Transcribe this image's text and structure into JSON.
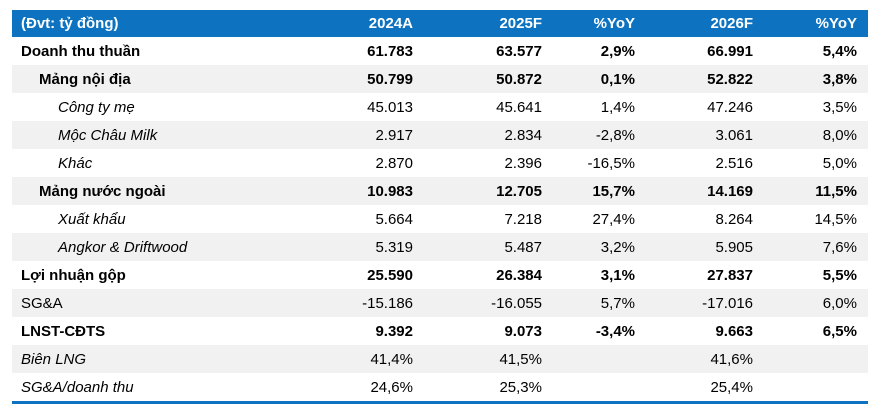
{
  "table": {
    "unit_label": "(Đvt: tỷ đồng)",
    "columns": [
      "2024A",
      "2025F",
      "%YoY",
      "2026F",
      "%YoY"
    ],
    "rows": [
      {
        "label": "Doanh thu thuần",
        "values": [
          "61.783",
          "63.577",
          "2,9%",
          "66.991",
          "5,4%"
        ]
      },
      {
        "label": "Mảng nội địa",
        "values": [
          "50.799",
          "50.872",
          "0,1%",
          "52.822",
          "3,8%"
        ]
      },
      {
        "label": "Công ty mẹ",
        "values": [
          "45.013",
          "45.641",
          "1,4%",
          "47.246",
          "3,5%"
        ]
      },
      {
        "label": "Mộc Châu Milk",
        "values": [
          "2.917",
          "2.834",
          "-2,8%",
          "3.061",
          "8,0%"
        ]
      },
      {
        "label": "Khác",
        "values": [
          "2.870",
          "2.396",
          "-16,5%",
          "2.516",
          "5,0%"
        ]
      },
      {
        "label": "Mảng nước ngoài",
        "values": [
          "10.983",
          "12.705",
          "15,7%",
          "14.169",
          "11,5%"
        ]
      },
      {
        "label": "Xuất khẩu",
        "values": [
          "5.664",
          "7.218",
          "27,4%",
          "8.264",
          "14,5%"
        ]
      },
      {
        "label": "Angkor & Driftwood",
        "values": [
          "5.319",
          "5.487",
          "3,2%",
          "5.905",
          "7,6%"
        ]
      },
      {
        "label": "Lợi nhuận gộp",
        "values": [
          "25.590",
          "26.384",
          "3,1%",
          "27.837",
          "5,5%"
        ]
      },
      {
        "label": "SG&A",
        "values": [
          "-15.186",
          "-16.055",
          "5,7%",
          "-17.016",
          "6,0%"
        ]
      },
      {
        "label": "LNST-CĐTS",
        "values": [
          "9.392",
          "9.073",
          "-3,4%",
          "9.663",
          "6,5%"
        ]
      },
      {
        "label": "Biên LNG",
        "values": [
          "41,4%",
          "41,5%",
          "",
          "41,6%",
          ""
        ]
      },
      {
        "label": "SG&A/doanh thu",
        "values": [
          "24,6%",
          "25,3%",
          "",
          "25,4%",
          ""
        ]
      }
    ]
  },
  "colors": {
    "header_bg": "#0d73c0",
    "stripe_bg": "#f1f1f1",
    "header_text": "#ffffff",
    "body_text": "#000000",
    "bottom_rule": "#0d73c0"
  }
}
